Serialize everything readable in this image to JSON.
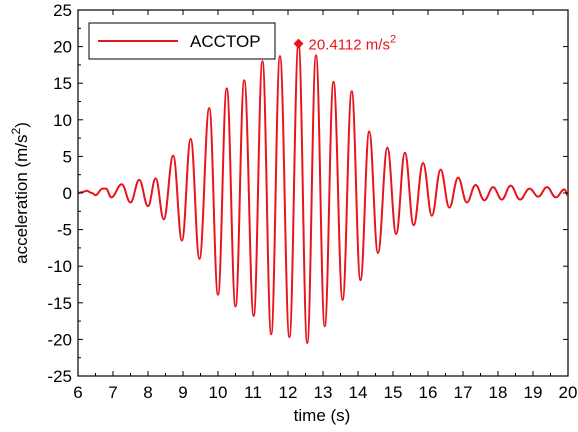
{
  "chart_data": {
    "type": "line",
    "title": "",
    "xlabel": "time (s)",
    "ylabel_main": "acceleration (m/s",
    "ylabel_sup": "2",
    "ylabel_close": ")",
    "xlim": [
      6,
      20
    ],
    "ylim": [
      -25,
      25
    ],
    "xticks": [
      6,
      7,
      8,
      9,
      10,
      11,
      12,
      13,
      14,
      15,
      16,
      17,
      18,
      19,
      20
    ],
    "yticks": [
      -25,
      -20,
      -15,
      -10,
      -5,
      0,
      5,
      10,
      15,
      20,
      25
    ],
    "grid": false,
    "legend": {
      "position": "top-left",
      "entries": [
        "ACCTOP"
      ]
    },
    "series": [
      {
        "name": "ACCTOP",
        "color": "#e8141c",
        "points": [
          [
            6.0,
            0.0
          ],
          [
            6.1,
            0.1
          ],
          [
            6.25,
            0.3
          ],
          [
            6.4,
            0.0
          ],
          [
            6.5,
            -0.3
          ],
          [
            6.7,
            0.6
          ],
          [
            6.8,
            0.6
          ],
          [
            6.95,
            -0.6
          ],
          [
            7.25,
            1.2
          ],
          [
            7.5,
            -1.3
          ],
          [
            7.75,
            1.8
          ],
          [
            8.0,
            -1.8
          ],
          [
            8.22,
            2.0
          ],
          [
            8.45,
            -3.6
          ],
          [
            8.72,
            5.1
          ],
          [
            8.97,
            -6.5
          ],
          [
            9.22,
            7.4
          ],
          [
            9.47,
            -9.0
          ],
          [
            9.75,
            11.6
          ],
          [
            10.0,
            -13.9
          ],
          [
            10.25,
            14.3
          ],
          [
            10.5,
            -15.5
          ],
          [
            10.75,
            15.4
          ],
          [
            11.02,
            -16.8
          ],
          [
            11.27,
            18.0
          ],
          [
            11.52,
            -19.3
          ],
          [
            11.77,
            18.7
          ],
          [
            12.04,
            -19.7
          ],
          [
            12.3,
            20.4112
          ],
          [
            12.55,
            -20.5
          ],
          [
            12.8,
            18.8
          ],
          [
            13.05,
            -18.2
          ],
          [
            13.3,
            15.2
          ],
          [
            13.56,
            -14.6
          ],
          [
            13.82,
            13.9
          ],
          [
            14.07,
            -11.9
          ],
          [
            14.32,
            8.4
          ],
          [
            14.57,
            -8.2
          ],
          [
            14.84,
            6.2
          ],
          [
            15.09,
            -5.6
          ],
          [
            15.34,
            5.5
          ],
          [
            15.59,
            -4.4
          ],
          [
            15.86,
            4.1
          ],
          [
            16.11,
            -3.1
          ],
          [
            16.36,
            3.2
          ],
          [
            16.61,
            -2.0
          ],
          [
            16.86,
            2.1
          ],
          [
            17.11,
            -1.3
          ],
          [
            17.36,
            1.1
          ],
          [
            17.61,
            -1.0
          ],
          [
            17.86,
            0.8
          ],
          [
            18.11,
            -0.9
          ],
          [
            18.36,
            1.0
          ],
          [
            18.63,
            -0.9
          ],
          [
            18.9,
            0.6
          ],
          [
            19.15,
            -0.5
          ],
          [
            19.4,
            0.8
          ],
          [
            19.65,
            -0.6
          ],
          [
            19.9,
            0.5
          ],
          [
            20.0,
            -0.4
          ]
        ]
      }
    ],
    "annotations": [
      {
        "x": 12.3,
        "y": 20.4112,
        "marker": "diamond",
        "text_main": "20.4112 m/s",
        "text_sup": "2"
      }
    ]
  }
}
